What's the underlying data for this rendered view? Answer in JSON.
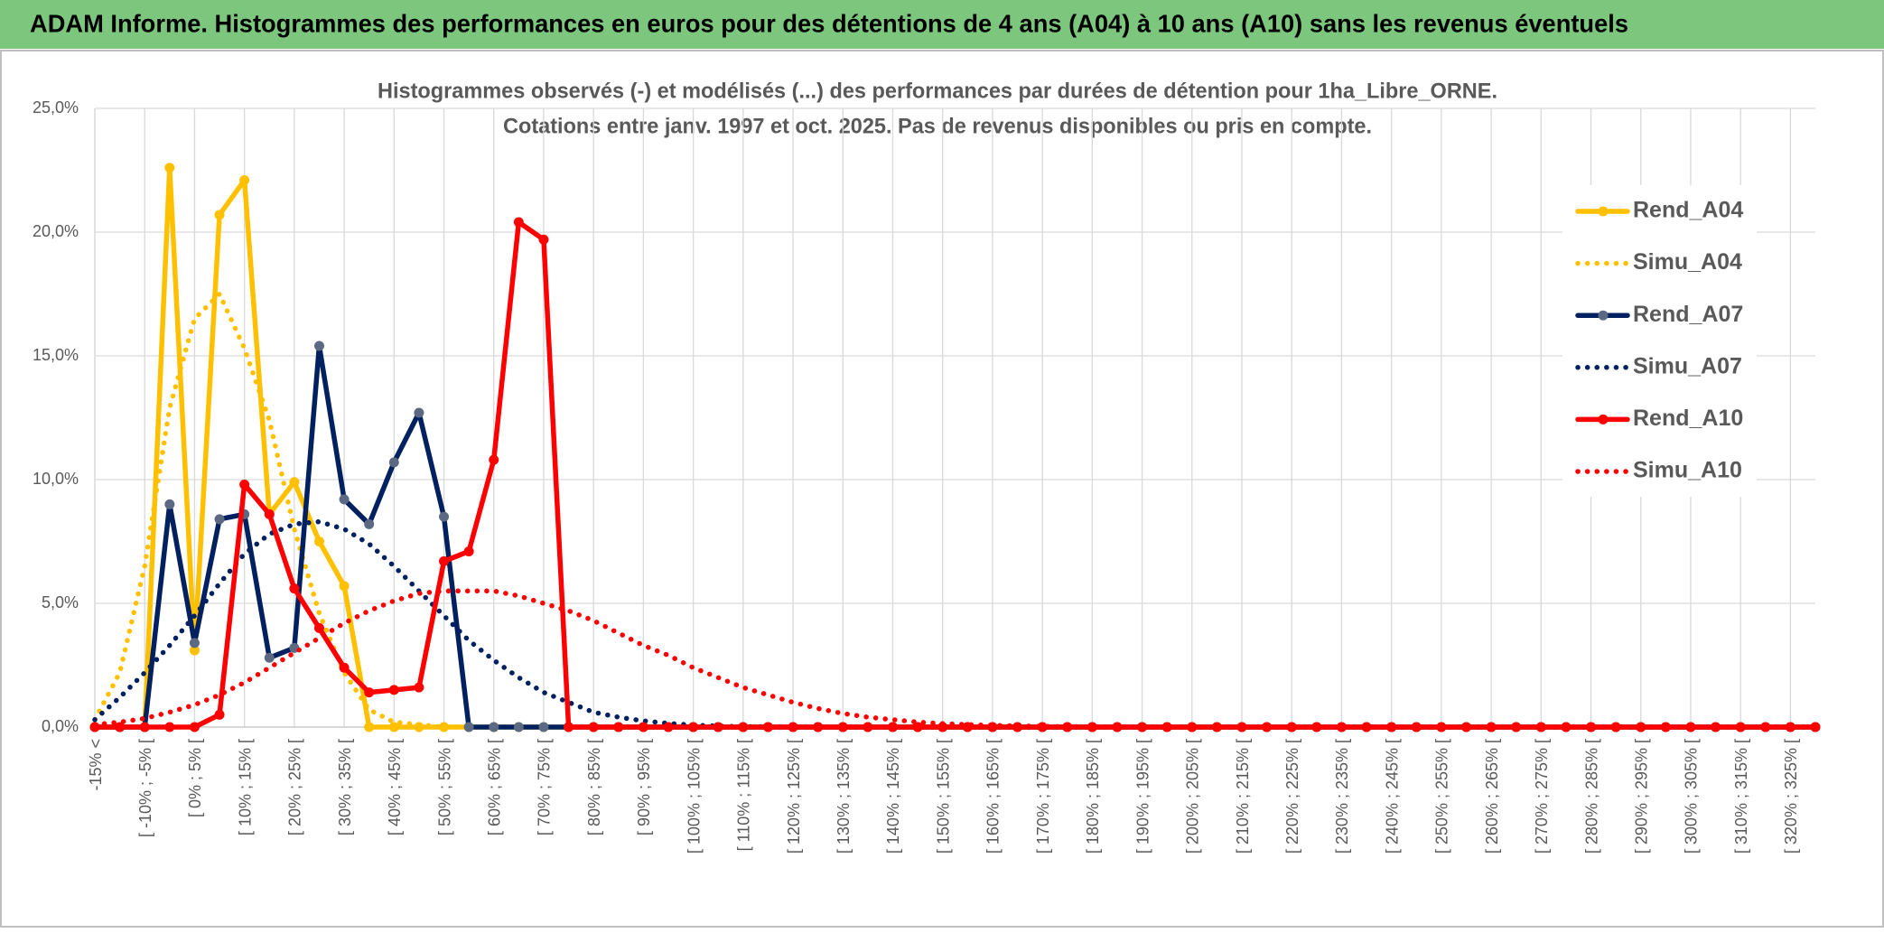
{
  "chart_data": {
    "type": "line",
    "title": "ADAM Informe. Histogrammes des performances en euros pour des détentions de 4 ans (A04) à 10 ans (A10) sans les revenus éventuels",
    "subtitle": [
      "Histogrammes observés (-) et modélisés (...) des performances par durées de détention pour 1ha_Libre_ORNE.",
      "Cotations entre janv. 1997 et oct. 2025. Pas de revenus disponibles ou pris en compte."
    ],
    "categories": [
      "-15% <",
      null,
      "[ -10% ; -5% [",
      null,
      "[ 0% ; 5% [",
      null,
      "[ 10% ; 15% [",
      null,
      "[ 20% ; 25% [",
      null,
      "[ 30% ; 35% [",
      null,
      "[ 40% ; 45% [",
      null,
      "[ 50% ; 55% [",
      null,
      "[ 60% ; 65% [",
      null,
      "[ 70% ; 75% [",
      null,
      "[ 80% ; 85% [",
      null,
      "[ 90% ; 95% [",
      null,
      "[ 100% ; 105% [",
      null,
      "[ 110% ; 115% [",
      null,
      "[ 120% ; 125% [",
      null,
      "[ 130% ; 135% [",
      null,
      "[ 140% ; 145% [",
      null,
      "[ 150% ; 155% [",
      null,
      "[ 160% ; 165% [",
      null,
      "[ 170% ; 175% [",
      null,
      "[ 180% ; 185% [",
      null,
      "[ 190% ; 195% [",
      null,
      "[ 200% ; 205% [",
      null,
      "[ 210% ; 215% [",
      null,
      "[ 220% ; 225% [",
      null,
      "[ 230% ; 235% [",
      null,
      "[ 240% ; 245% [",
      null,
      "[ 250% ; 255% [",
      null,
      "[ 260% ; 265% [",
      null,
      "[ 270% ; 275% [",
      null,
      "[ 280% ; 285% [",
      null,
      "[ 290% ; 295% [",
      null,
      "[ 300% ; 305% [",
      null,
      "[ 310% ; 315% [",
      null,
      "[ 320% ; 325% [",
      null
    ],
    "series": [
      {
        "name": "Rend_A04",
        "color": "#ffc000",
        "marker_color": "#ffc000",
        "style": "solid",
        "values": [
          0,
          0,
          0,
          22.6,
          3.1,
          20.7,
          22.1,
          8.6,
          9.9,
          7.5,
          5.7,
          0,
          0,
          0,
          0,
          0,
          0,
          0,
          0,
          0,
          0,
          0,
          0,
          0,
          0,
          0,
          0,
          0,
          0,
          0,
          0,
          0,
          0,
          0,
          0,
          0,
          0,
          0,
          0,
          0,
          0,
          0,
          0,
          0,
          0,
          0,
          0,
          0,
          0,
          0,
          0,
          0,
          0,
          0,
          0,
          0,
          0,
          0,
          0,
          0,
          0,
          0,
          0,
          0,
          0,
          0,
          0,
          0,
          0,
          0
        ]
      },
      {
        "name": "Simu_A04",
        "color": "#ffc000",
        "style": "dotted",
        "values": [
          0.3,
          2.2,
          6.5,
          12.9,
          16.5,
          17.5,
          15.3,
          12.4,
          8.0,
          4.6,
          2.2,
          0.7,
          0.2,
          0.1,
          0,
          0,
          0,
          0,
          0,
          0,
          0,
          0,
          0,
          0,
          0,
          0,
          0,
          0,
          0,
          0,
          0,
          0,
          0,
          0,
          0,
          0,
          0,
          0,
          0,
          0,
          0,
          0,
          0,
          0,
          0,
          0,
          0,
          0,
          0,
          0,
          0,
          0,
          0,
          0,
          0,
          0,
          0,
          0,
          0,
          0,
          0,
          0,
          0,
          0,
          0,
          0,
          0,
          0,
          0,
          0
        ]
      },
      {
        "name": "Rend_A07",
        "color": "#002060",
        "marker_color": "#5b6a82",
        "style": "solid",
        "values": [
          0,
          0,
          0,
          9.0,
          3.4,
          8.4,
          8.6,
          2.8,
          3.2,
          15.4,
          9.2,
          8.2,
          10.7,
          12.7,
          8.5,
          0,
          0,
          0,
          0,
          0,
          0,
          0,
          0,
          0,
          0,
          0,
          0,
          0,
          0,
          0,
          0,
          0,
          0,
          0,
          0,
          0,
          0,
          0,
          0,
          0,
          0,
          0,
          0,
          0,
          0,
          0,
          0,
          0,
          0,
          0,
          0,
          0,
          0,
          0,
          0,
          0,
          0,
          0,
          0,
          0,
          0,
          0,
          0,
          0,
          0,
          0,
          0,
          0,
          0,
          0
        ]
      },
      {
        "name": "Simu_A07",
        "color": "#002060",
        "style": "dotted",
        "values": [
          0.3,
          1.2,
          2.2,
          3.3,
          4.5,
          5.8,
          7.0,
          7.8,
          8.2,
          8.3,
          8.0,
          7.4,
          6.5,
          5.5,
          4.5,
          3.5,
          2.7,
          2.0,
          1.4,
          1.0,
          0.6,
          0.4,
          0.25,
          0.15,
          0.08,
          0.04,
          0.02,
          0.01,
          0,
          0,
          0,
          0,
          0,
          0,
          0,
          0,
          0,
          0,
          0,
          0,
          0,
          0,
          0,
          0,
          0,
          0,
          0,
          0,
          0,
          0,
          0,
          0,
          0,
          0,
          0,
          0,
          0,
          0,
          0,
          0,
          0,
          0,
          0,
          0,
          0,
          0,
          0,
          0,
          0,
          0
        ]
      },
      {
        "name": "Rend_A10",
        "color": "#ff0000",
        "marker_color": "#ff0000",
        "style": "solid",
        "values": [
          0,
          0,
          0,
          0,
          0,
          0.5,
          9.8,
          8.6,
          5.6,
          4.0,
          2.4,
          1.4,
          1.5,
          1.6,
          6.7,
          7.1,
          10.8,
          20.4,
          19.7,
          0,
          0,
          0,
          0,
          0,
          0,
          0,
          0,
          0,
          0,
          0,
          0,
          0,
          0,
          0,
          0,
          0,
          0,
          0,
          0,
          0,
          0,
          0,
          0,
          0,
          0,
          0,
          0,
          0,
          0,
          0,
          0,
          0,
          0,
          0,
          0,
          0,
          0,
          0,
          0,
          0,
          0,
          0,
          0,
          0,
          0,
          0,
          0,
          0,
          0,
          0
        ]
      },
      {
        "name": "Simu_A10",
        "color": "#ff0000",
        "style": "dotted",
        "values": [
          0.1,
          0.2,
          0.35,
          0.6,
          0.9,
          1.3,
          1.8,
          2.4,
          3.0,
          3.6,
          4.2,
          4.7,
          5.1,
          5.4,
          5.5,
          5.5,
          5.5,
          5.3,
          5.0,
          4.7,
          4.3,
          3.8,
          3.3,
          2.9,
          2.4,
          2.0,
          1.6,
          1.3,
          1.0,
          0.75,
          0.55,
          0.4,
          0.3,
          0.2,
          0.14,
          0.1,
          0.07,
          0.05,
          0.03,
          0.02,
          0.01,
          0,
          0,
          0,
          0,
          0,
          0,
          0,
          0,
          0,
          0,
          0,
          0,
          0,
          0,
          0,
          0,
          0,
          0,
          0,
          0,
          0,
          0,
          0,
          0,
          0,
          0,
          0,
          0,
          0
        ]
      }
    ],
    "ylim": [
      0,
      25
    ],
    "yticks": [
      {
        "value": 0,
        "label": "0,0%"
      },
      {
        "value": 5,
        "label": "5,0%"
      },
      {
        "value": 10,
        "label": "10,0%"
      },
      {
        "value": 15,
        "label": "15,0%"
      },
      {
        "value": 20,
        "label": "20,0%"
      },
      {
        "value": 25,
        "label": "25,0%"
      }
    ],
    "grid": true,
    "legend": "right"
  }
}
